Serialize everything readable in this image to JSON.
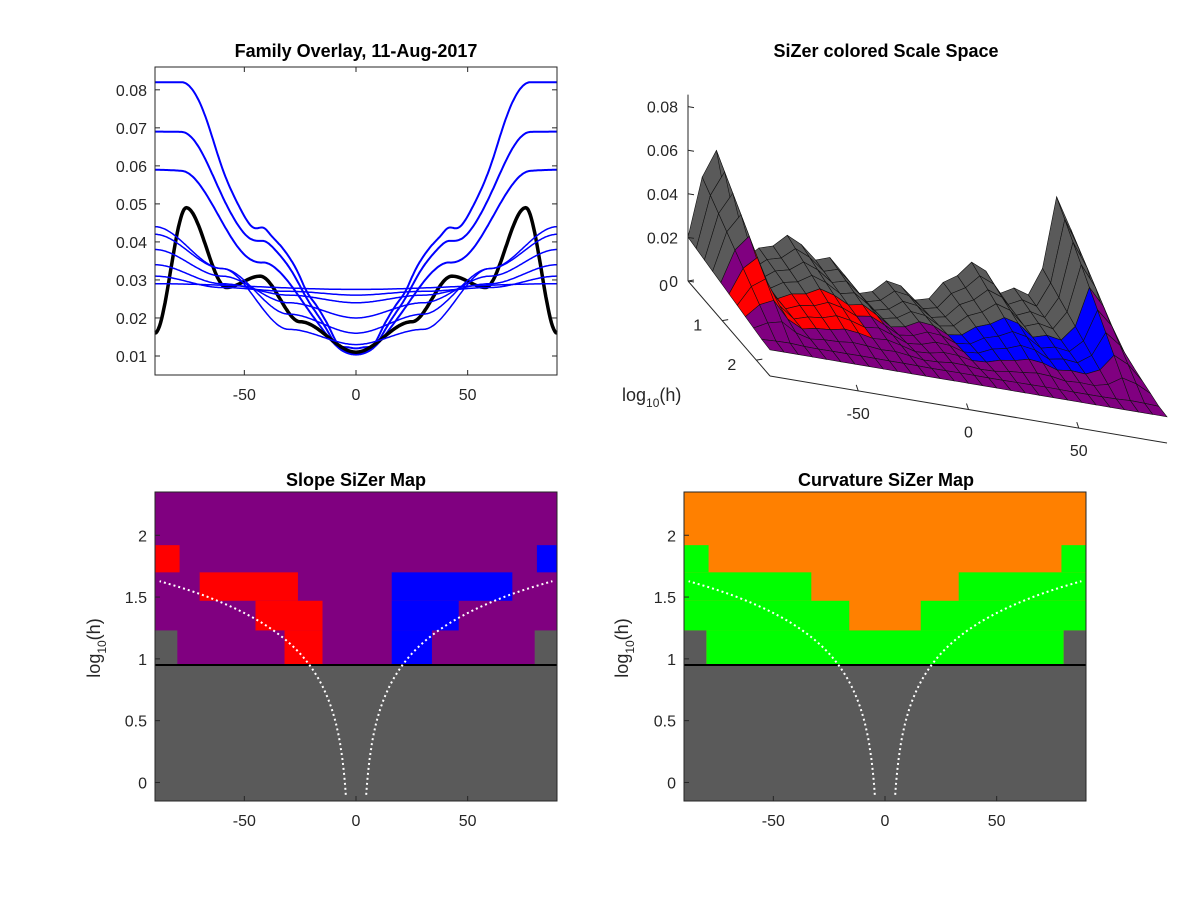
{
  "chart_data": [
    {
      "type": "line",
      "title": "Family Overlay, 11-Aug-2017",
      "xlim": [
        -90,
        90
      ],
      "ylim": [
        0.005,
        0.086
      ],
      "x_ticks": [
        -50,
        0,
        50
      ],
      "x_tick_labels": [
        "-50",
        "0",
        "50"
      ],
      "y_ticks": [
        0.01,
        0.02,
        0.03,
        0.04,
        0.05,
        0.06,
        0.07,
        0.08
      ],
      "y_tick_labels": [
        "0.01",
        "0.02",
        "0.03",
        "0.04",
        "0.05",
        "0.06",
        "0.07",
        "0.08"
      ],
      "grid": false,
      "colors": {
        "family": "#0000ff",
        "highlight": "#000000"
      },
      "series": [
        {
          "color": "#0000ff",
          "peak_x": 78,
          "values_at": {
            "-78": 0.082,
            "-42": 0.042,
            "0": 0.012,
            "42": 0.042,
            "78": 0.082
          }
        },
        {
          "color": "#0000ff",
          "values_at": {
            "-78": 0.069,
            "-42": 0.039,
            "0": 0.011,
            "42": 0.039,
            "78": 0.069
          }
        },
        {
          "color": "#0000ff",
          "values_at": {
            "-78": 0.059,
            "-42": 0.034,
            "0": 0.011,
            "42": 0.034,
            "78": 0.059
          }
        },
        {
          "color": "#000000",
          "highlighted": true,
          "values_at": {
            "-90": 0.016,
            "-76": 0.049,
            "-58": 0.028,
            "-43": 0.031,
            "-25": 0.019,
            "0": 0.011,
            "25": 0.019,
            "43": 0.031,
            "58": 0.028,
            "76": 0.049,
            "90": 0.016
          }
        },
        {
          "color": "#0000ff",
          "values_at": {
            "-90": 0.044,
            "-60": 0.033,
            "-30": 0.017,
            "0": 0.013,
            "30": 0.017,
            "60": 0.033,
            "90": 0.044
          }
        },
        {
          "color": "#0000ff",
          "values_at": {
            "-90": 0.042,
            "-60": 0.033,
            "-30": 0.021,
            "0": 0.016,
            "30": 0.021,
            "60": 0.033,
            "90": 0.042
          }
        },
        {
          "color": "#0000ff",
          "values_at": {
            "-90": 0.038,
            "-60": 0.031,
            "-30": 0.024,
            "0": 0.02,
            "30": 0.024,
            "60": 0.031,
            "90": 0.038
          }
        },
        {
          "color": "#0000ff",
          "values_at": {
            "-90": 0.034,
            "-60": 0.029,
            "-30": 0.026,
            "0": 0.024,
            "30": 0.026,
            "60": 0.029,
            "90": 0.034
          }
        },
        {
          "color": "#0000ff",
          "values_at": {
            "-90": 0.031,
            "-60": 0.028,
            "-30": 0.027,
            "0": 0.026,
            "30": 0.027,
            "60": 0.028,
            "90": 0.031
          }
        },
        {
          "color": "#0000ff",
          "values_at": {
            "-90": 0.029,
            "0": 0.0275,
            "90": 0.029
          }
        }
      ]
    },
    {
      "type": "surface",
      "title": "SiZer colored Scale Space",
      "x_tick_labels": [
        "-50",
        "0",
        "50"
      ],
      "y_tick_labels": [
        "0",
        "1",
        "2"
      ],
      "z_tick_labels": [
        "0",
        "0.02",
        "0.04",
        "0.06",
        "0.08"
      ],
      "ylabel": "log",
      "ylabel_sub": "10",
      "ylabel_suffix": "(h)",
      "colors": {
        "increasing": "#0000ff",
        "decreasing": "#ff0000",
        "not_significant": "#800080",
        "sparse": "#5a5a5a"
      }
    },
    {
      "type": "heatmap",
      "title": "Slope SiZer Map",
      "ylabel": "log",
      "ylabel_sub": "10",
      "ylabel_suffix": "(h)",
      "xlim": [
        -90,
        90
      ],
      "ylim": [
        -0.15,
        2.35
      ],
      "x_tick_labels": [
        "-50",
        "0",
        "50"
      ],
      "y_tick_labels": [
        "0",
        "0.5",
        "1",
        "1.5",
        "2"
      ],
      "background_color": "#800080",
      "sparse_color": "#5a5a5a",
      "threshold_line_y": 0.95,
      "regions": [
        {
          "color": "#ff0000",
          "x": [
            -90,
            -79
          ],
          "y": [
            1.7,
            1.92
          ]
        },
        {
          "color": "#ff0000",
          "x": [
            -70,
            -26
          ],
          "y": [
            1.47,
            1.7
          ]
        },
        {
          "color": "#ff0000",
          "x": [
            -45,
            -15
          ],
          "y": [
            1.23,
            1.47
          ]
        },
        {
          "color": "#ff0000",
          "x": [
            -32,
            -15
          ],
          "y": [
            0.95,
            1.23
          ]
        },
        {
          "color": "#0000ff",
          "x": [
            16,
            70
          ],
          "y": [
            1.47,
            1.7
          ]
        },
        {
          "color": "#0000ff",
          "x": [
            16,
            46
          ],
          "y": [
            1.23,
            1.47
          ]
        },
        {
          "color": "#0000ff",
          "x": [
            16,
            34
          ],
          "y": [
            0.95,
            1.23
          ]
        },
        {
          "color": "#0000ff",
          "x": [
            81,
            90
          ],
          "y": [
            1.7,
            1.92
          ]
        },
        {
          "color": "#5a5a5a",
          "x": [
            -90,
            -80
          ],
          "y": [
            0.95,
            1.23
          ]
        },
        {
          "color": "#5a5a5a",
          "x": [
            80,
            90
          ],
          "y": [
            0.95,
            1.23
          ]
        }
      ]
    },
    {
      "type": "heatmap",
      "title": "Curvature SiZer Map",
      "ylabel": "log",
      "ylabel_sub": "10",
      "ylabel_suffix": "(h)",
      "xlim": [
        -90,
        90
      ],
      "ylim": [
        -0.15,
        2.35
      ],
      "x_tick_labels": [
        "-50",
        "0",
        "50"
      ],
      "y_tick_labels": [
        "0",
        "0.5",
        "1",
        "1.5",
        "2"
      ],
      "background_color": "#ff8000",
      "sparse_color": "#5a5a5a",
      "threshold_line_y": 0.95,
      "regions": [
        {
          "color": "#00ff00",
          "x": [
            -90,
            -79
          ],
          "y": [
            1.7,
            1.92
          ]
        },
        {
          "color": "#00ff00",
          "x": [
            79,
            90
          ],
          "y": [
            1.7,
            1.92
          ]
        },
        {
          "color": "#00ff00",
          "x": [
            -90,
            -33
          ],
          "y": [
            1.47,
            1.7
          ]
        },
        {
          "color": "#00ff00",
          "x": [
            33,
            90
          ],
          "y": [
            1.47,
            1.7
          ]
        },
        {
          "color": "#00ff00",
          "x": [
            -90,
            -16
          ],
          "y": [
            1.23,
            1.47
          ]
        },
        {
          "color": "#00ff00",
          "x": [
            16,
            90
          ],
          "y": [
            1.23,
            1.47
          ]
        },
        {
          "color": "#00ff00",
          "x": [
            -80,
            80
          ],
          "y": [
            0.95,
            1.23
          ]
        },
        {
          "color": "#5a5a5a",
          "x": [
            -90,
            -80
          ],
          "y": [
            0.95,
            1.23
          ]
        },
        {
          "color": "#5a5a5a",
          "x": [
            80,
            90
          ],
          "y": [
            0.95,
            1.23
          ]
        }
      ]
    }
  ]
}
